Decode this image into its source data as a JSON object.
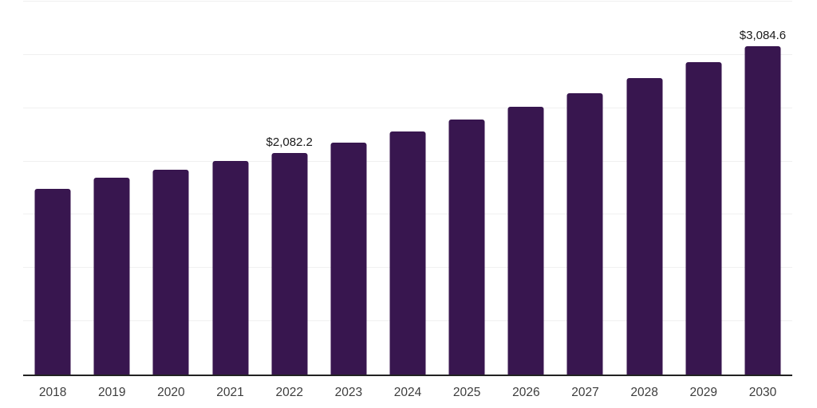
{
  "chart_data": {
    "type": "bar",
    "title": "",
    "xlabel": "",
    "ylabel": "",
    "legend": "none",
    "grid": "horizontal",
    "ylim": [
      0,
      3500
    ],
    "gridline_values": [
      500,
      1000,
      1500,
      2000,
      2500,
      3000,
      3500
    ],
    "categories": [
      "2018",
      "2019",
      "2020",
      "2021",
      "2022",
      "2023",
      "2024",
      "2025",
      "2026",
      "2027",
      "2028",
      "2029",
      "2030"
    ],
    "values": [
      1745,
      1847,
      1922,
      2001,
      2082.2,
      2177,
      2283,
      2396,
      2516,
      2643,
      2785,
      2934,
      3084.6
    ],
    "data_labels": {
      "2022": "$2,082.2",
      "2030": "$3,084.6"
    },
    "colors": {
      "bar": "#38164F",
      "axis": "#222222",
      "gridline": "#f0f0f0",
      "data_label": "#1a1a1a",
      "tick_label": "#3d3d3d",
      "background": "#ffffff"
    }
  }
}
